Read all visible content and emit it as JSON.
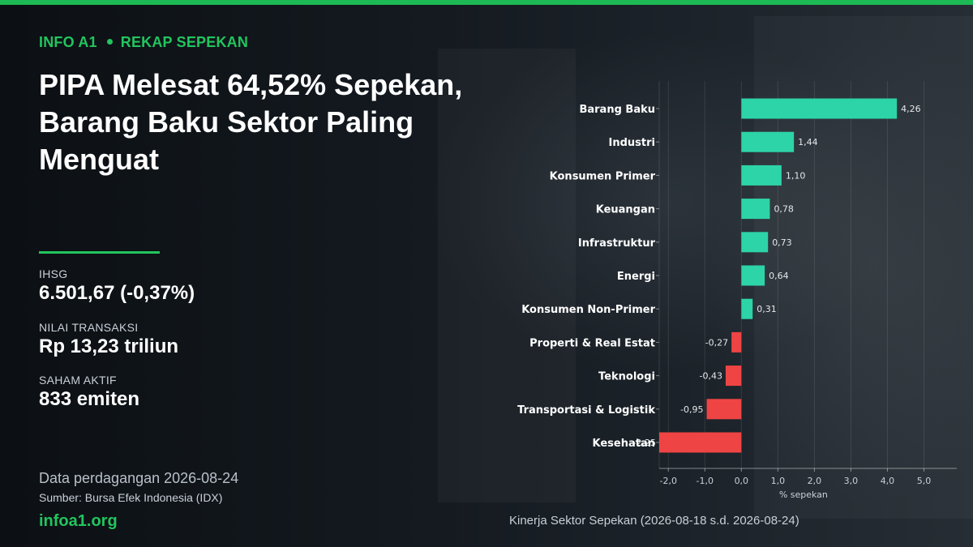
{
  "kicker": {
    "brand": "INFO A1",
    "section": "REKAP SEPEKAN"
  },
  "headline": "PIPA Melesat 64,52% Sepekan, Barang Baku Sektor Paling Menguat",
  "stats": {
    "ihsg_label": "IHSG",
    "ihsg_value": "6.501,67  (-0,37%)",
    "transaction_label": "NILAI TRANSAKSI",
    "transaction_value": "Rp 13,23 triliun",
    "active_label": "SAHAM AKTIF",
    "active_value": "833 emiten"
  },
  "footer": {
    "date_line": "Data perdagangan 2026-08-24",
    "source_line": "Sumber: Bursa Efek Indonesia (IDX)",
    "site": "infoa1.org"
  },
  "colors": {
    "accent": "#22c55e",
    "positive": "#2dd4a7",
    "negative": "#ef4444"
  },
  "chart_data": {
    "type": "bar",
    "orientation": "horizontal",
    "caption": "Kinerja Sektor Sepekan (2026-08-18 s.d. 2026-08-24)",
    "xlabel": "% sepekan",
    "xlim": [
      -2.25,
      5.9
    ],
    "xticks": [
      -2.0,
      -1.0,
      0.0,
      1.0,
      2.0,
      3.0,
      4.0,
      5.0
    ],
    "xtick_labels": [
      "-2,0",
      "-1,0",
      "0,0",
      "1,0",
      "2,0",
      "3,0",
      "4,0",
      "5,0"
    ],
    "grid": true,
    "categories": [
      "Barang Baku",
      "Industri",
      "Konsumen Primer",
      "Keuangan",
      "Infrastruktur",
      "Energi",
      "Konsumen Non-Primer",
      "Properti & Real Estat",
      "Teknologi",
      "Transportasi & Logistik",
      "Kesehatan"
    ],
    "values": [
      4.26,
      1.44,
      1.1,
      0.78,
      0.73,
      0.64,
      0.31,
      -0.27,
      -0.43,
      -0.95,
      -2.25
    ],
    "value_labels": [
      "4,26",
      "1,44",
      "1,10",
      "0,78",
      "0,73",
      "0,64",
      "0,31",
      "-0,27",
      "-0,43",
      "-0,95",
      "-2,25"
    ]
  }
}
